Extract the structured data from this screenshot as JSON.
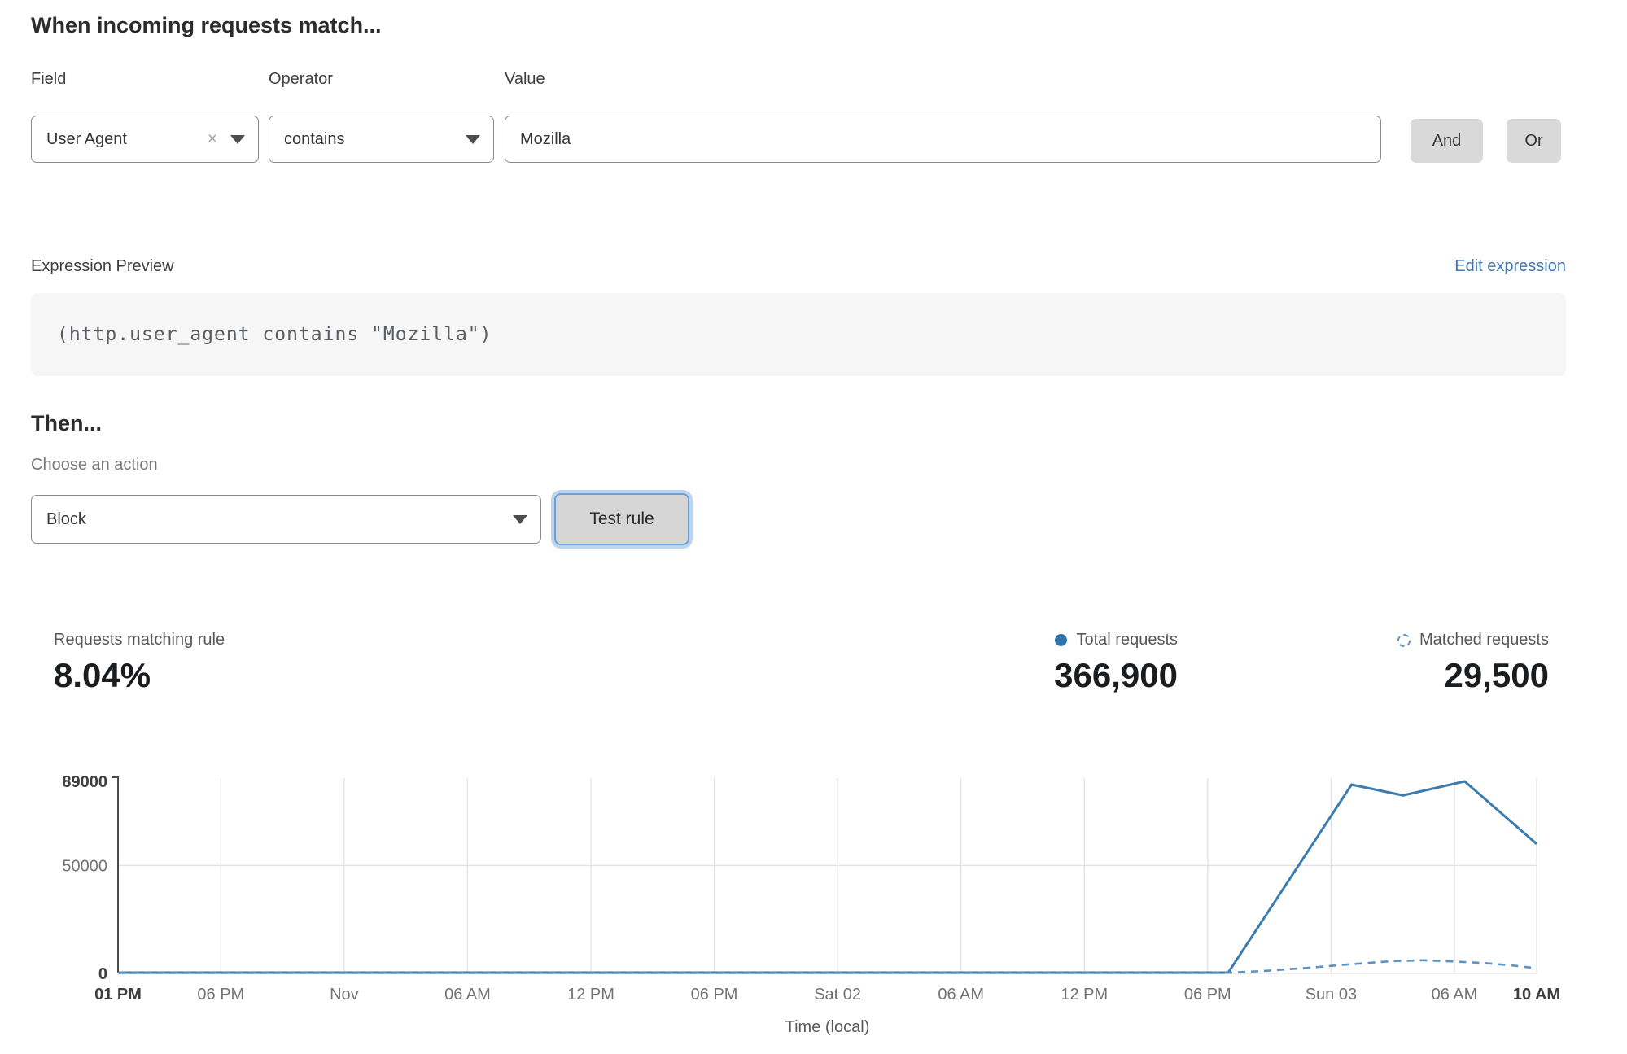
{
  "rule_builder": {
    "heading": "When incoming requests match...",
    "field": {
      "label": "Field",
      "value": "User Agent"
    },
    "operator": {
      "label": "Operator",
      "value": "contains"
    },
    "value": {
      "label": "Value",
      "value": "Mozilla"
    },
    "and_label": "And",
    "or_label": "Or"
  },
  "expression": {
    "label": "Expression Preview",
    "edit_link": "Edit expression",
    "code": "(http.user_agent contains \"Mozilla\")"
  },
  "action": {
    "heading": "Then...",
    "label": "Choose an action",
    "selected": "Block",
    "test_button": "Test rule"
  },
  "stats": {
    "matching": {
      "label": "Requests matching rule",
      "value": "8.04%"
    },
    "total": {
      "label": "Total requests",
      "value": "366,900",
      "marker": "solid-dot",
      "marker_color": "#3273a8"
    },
    "matched": {
      "label": "Matched requests",
      "value": "29,500",
      "marker": "dashed-circle",
      "marker_color": "#5e92c3"
    }
  },
  "chart_data": {
    "type": "line",
    "title": "",
    "xlabel": "Time (local)",
    "ylabel": "",
    "x_unit": "hours after Thu 01 PM",
    "ylim": [
      0,
      89000
    ],
    "grid": true,
    "legend_position": "above-right (as stats row)",
    "y_ticks": [
      {
        "v": 0,
        "label": "0",
        "bold": true
      },
      {
        "v": 50000,
        "label": "50000",
        "bold": false
      },
      {
        "v": 89000,
        "label": "89000",
        "bold": true
      }
    ],
    "x_ticks": [
      {
        "t": 0,
        "label": "01 PM",
        "bold": true
      },
      {
        "t": 5,
        "label": "06 PM",
        "bold": false
      },
      {
        "t": 11,
        "label": "Nov",
        "bold": false
      },
      {
        "t": 17,
        "label": "06 AM",
        "bold": false
      },
      {
        "t": 23,
        "label": "12 PM",
        "bold": false
      },
      {
        "t": 29,
        "label": "06 PM",
        "bold": false
      },
      {
        "t": 35,
        "label": "Sat 02",
        "bold": false
      },
      {
        "t": 41,
        "label": "06 AM",
        "bold": false
      },
      {
        "t": 47,
        "label": "12 PM",
        "bold": false
      },
      {
        "t": 53,
        "label": "06 PM",
        "bold": false
      },
      {
        "t": 59,
        "label": "Sun 03",
        "bold": false
      },
      {
        "t": 65,
        "label": "06 AM",
        "bold": false
      },
      {
        "t": 69,
        "label": "10 AM",
        "bold": true
      }
    ],
    "series": [
      {
        "name": "Total requests",
        "style": "solid",
        "color": "#3c7cad",
        "points": [
          [
            0,
            400
          ],
          [
            5,
            400
          ],
          [
            11,
            400
          ],
          [
            17,
            400
          ],
          [
            23,
            400
          ],
          [
            29,
            400
          ],
          [
            35,
            400
          ],
          [
            41,
            400
          ],
          [
            47,
            400
          ],
          [
            53,
            400
          ],
          [
            54,
            400
          ],
          [
            60,
            87500
          ],
          [
            62.5,
            82500
          ],
          [
            65.5,
            89000
          ],
          [
            69,
            60000
          ]
        ]
      },
      {
        "name": "Matched requests",
        "style": "dashed",
        "color": "#5e92c3",
        "points": [
          [
            0,
            200
          ],
          [
            5,
            200
          ],
          [
            11,
            200
          ],
          [
            17,
            200
          ],
          [
            23,
            200
          ],
          [
            29,
            200
          ],
          [
            35,
            200
          ],
          [
            41,
            200
          ],
          [
            47,
            200
          ],
          [
            53,
            200
          ],
          [
            54,
            300
          ],
          [
            56,
            1300
          ],
          [
            58,
            2700
          ],
          [
            60,
            4300
          ],
          [
            62,
            5700
          ],
          [
            63.5,
            6100
          ],
          [
            65,
            5500
          ],
          [
            66.5,
            4800
          ],
          [
            68,
            3500
          ],
          [
            69,
            2400
          ]
        ]
      }
    ]
  }
}
